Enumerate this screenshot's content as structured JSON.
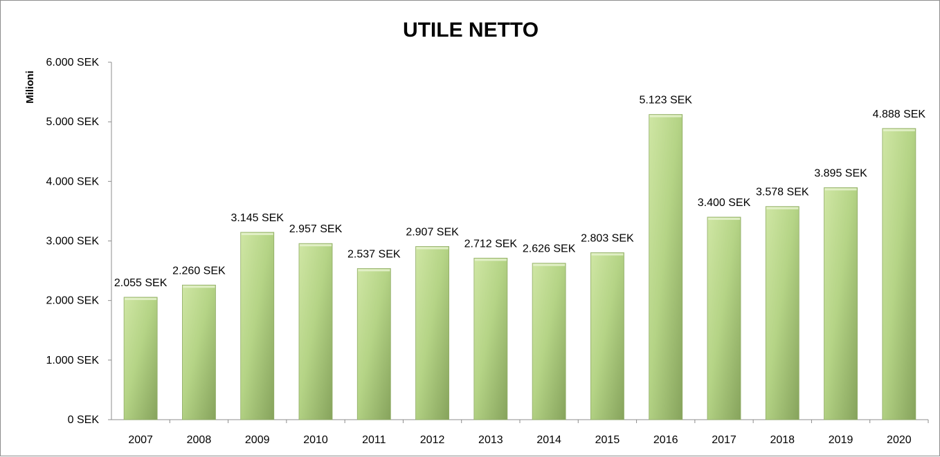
{
  "chart_data": {
    "type": "bar",
    "title": "UTILE NETTO",
    "ylabel": "Milioni",
    "xlabel": "",
    "ylim": [
      0,
      6000
    ],
    "yticks": [
      0,
      1000,
      2000,
      3000,
      4000,
      5000,
      6000
    ],
    "ytick_labels": [
      "0 SEK",
      "1.000 SEK",
      "2.000 SEK",
      "3.000 SEK",
      "4.000 SEK",
      "5.000 SEK",
      "6.000 SEK"
    ],
    "categories": [
      "2007",
      "2008",
      "2009",
      "2010",
      "2011",
      "2012",
      "2013",
      "2014",
      "2015",
      "2016",
      "2017",
      "2018",
      "2019",
      "2020"
    ],
    "values": [
      2055,
      2260,
      3145,
      2957,
      2537,
      2907,
      2712,
      2626,
      2803,
      5123,
      3400,
      3578,
      3895,
      4888
    ],
    "value_labels": [
      "2.055 SEK",
      "2.260 SEK",
      "3.145 SEK",
      "2.957 SEK",
      "2.537 SEK",
      "2.907 SEK",
      "2.712 SEK",
      "2.626 SEK",
      "2.803 SEK",
      "5.123 SEK",
      "3.400 SEK",
      "3.578 SEK",
      "3.895 SEK",
      "4.888 SEK"
    ],
    "grid": false,
    "legend": "none",
    "bar_color": "#a9c77a",
    "bar_color_light": "#c7e09a",
    "bar_color_dark": "#7f9a55"
  }
}
